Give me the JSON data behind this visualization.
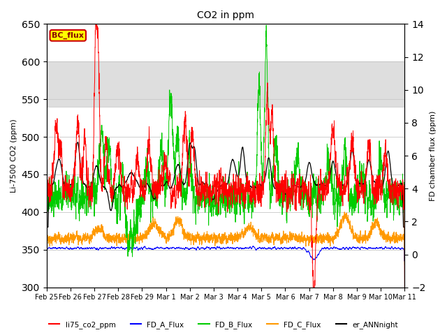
{
  "title": "CO2 in ppm",
  "ylabel_left": "Li-7500 CO2 (ppm)",
  "ylabel_right": "FD chamber flux (ppm)",
  "ylim_left": [
    300,
    650
  ],
  "ylim_right": [
    -2,
    14
  ],
  "yticks_left": [
    300,
    350,
    400,
    450,
    500,
    550,
    600,
    650
  ],
  "yticks_right": [
    -2,
    0,
    2,
    4,
    6,
    8,
    10,
    12,
    14
  ],
  "xtick_labels": [
    "Feb 25",
    "Feb 26",
    "Feb 27",
    "Feb 28",
    "Feb 29",
    "Mar 1",
    "Mar 2",
    "Mar 3",
    "Mar 4",
    "Mar 5",
    "Mar 6",
    "Mar 7",
    "Mar 8",
    "Mar 9",
    "Mar 10",
    "Mar 11"
  ],
  "shaded_band": [
    540,
    600
  ],
  "legend_items": [
    {
      "label": "li75_co2_ppm",
      "color": "#ff0000"
    },
    {
      "label": "FD_A_Flux",
      "color": "#0000ff"
    },
    {
      "label": "FD_B_Flux",
      "color": "#00cc00"
    },
    {
      "label": "FD_C_Flux",
      "color": "#ff9900"
    },
    {
      "label": "er_ANNnight",
      "color": "#000000"
    }
  ],
  "annotation_box": {
    "text": "BC_flux",
    "facecolor": "#ffff00",
    "edgecolor": "#cc0000"
  },
  "background_color": "#ffffff",
  "grid_color": "#c8c8c8"
}
